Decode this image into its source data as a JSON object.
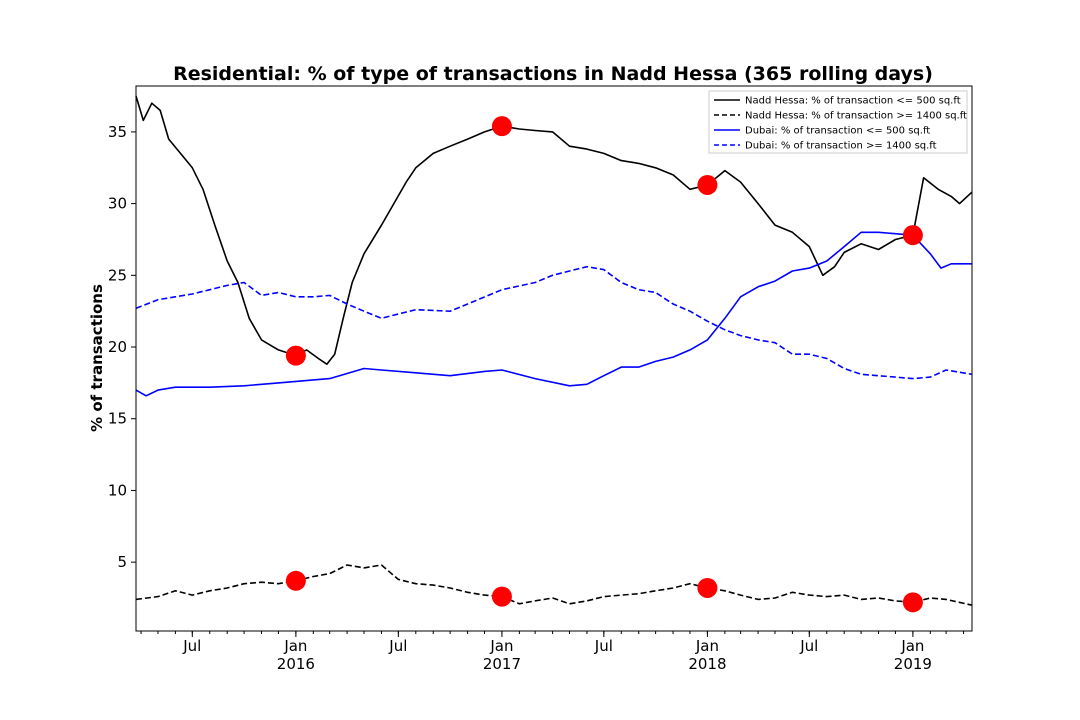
{
  "chart_data": {
    "type": "line",
    "title": "Residential: % of type of transactions in Nadd Hessa (365 rolling days)",
    "xlabel": "",
    "ylabel": "% of transactions",
    "xlim": [
      "2015-03-23",
      "2019-04-16"
    ],
    "ylim": [
      0.2,
      38.2
    ],
    "y_ticks": [
      5,
      10,
      15,
      20,
      25,
      30,
      35
    ],
    "x_ticks": [
      {
        "date": "2015-07-01",
        "label": "Jul",
        "year": ""
      },
      {
        "date": "2016-01-01",
        "label": "Jan",
        "year": "2016"
      },
      {
        "date": "2016-07-01",
        "label": "Jul",
        "year": ""
      },
      {
        "date": "2017-01-01",
        "label": "Jan",
        "year": "2017"
      },
      {
        "date": "2017-07-01",
        "label": "Jul",
        "year": ""
      },
      {
        "date": "2018-01-01",
        "label": "Jan",
        "year": "2018"
      },
      {
        "date": "2018-07-01",
        "label": "Jul",
        "year": ""
      },
      {
        "date": "2019-01-01",
        "label": "Jan",
        "year": "2019"
      }
    ],
    "legend_position": "top-right",
    "grid": false,
    "series": [
      {
        "name": "Nadd Hessa: % of transaction <= 500 sq.ft",
        "color": "#000000",
        "style": "solid",
        "points": [
          [
            "2015-03-23",
            37.5
          ],
          [
            "2015-04-05",
            35.8
          ],
          [
            "2015-04-20",
            37.0
          ],
          [
            "2015-05-05",
            36.5
          ],
          [
            "2015-05-20",
            34.5
          ],
          [
            "2015-06-10",
            33.5
          ],
          [
            "2015-07-01",
            32.5
          ],
          [
            "2015-07-20",
            31.0
          ],
          [
            "2015-08-10",
            28.5
          ],
          [
            "2015-09-01",
            26.0
          ],
          [
            "2015-09-20",
            24.5
          ],
          [
            "2015-10-10",
            22.0
          ],
          [
            "2015-11-01",
            20.5
          ],
          [
            "2015-12-01",
            19.8
          ],
          [
            "2016-01-01",
            19.4
          ],
          [
            "2016-01-20",
            19.8
          ],
          [
            "2016-02-10",
            19.2
          ],
          [
            "2016-02-25",
            18.8
          ],
          [
            "2016-03-10",
            19.5
          ],
          [
            "2016-03-25",
            22.0
          ],
          [
            "2016-04-10",
            24.5
          ],
          [
            "2016-05-01",
            26.5
          ],
          [
            "2016-06-01",
            28.5
          ],
          [
            "2016-07-15",
            31.5
          ],
          [
            "2016-08-01",
            32.5
          ],
          [
            "2016-09-01",
            33.5
          ],
          [
            "2016-10-01",
            34.0
          ],
          [
            "2016-11-01",
            34.5
          ],
          [
            "2016-12-01",
            35.0
          ],
          [
            "2017-01-01",
            35.4
          ],
          [
            "2017-02-01",
            35.2
          ],
          [
            "2017-03-01",
            35.1
          ],
          [
            "2017-04-01",
            35.0
          ],
          [
            "2017-05-01",
            34.0
          ],
          [
            "2017-06-01",
            33.8
          ],
          [
            "2017-07-01",
            33.5
          ],
          [
            "2017-08-01",
            33.0
          ],
          [
            "2017-09-01",
            32.8
          ],
          [
            "2017-10-01",
            32.5
          ],
          [
            "2017-11-01",
            32.0
          ],
          [
            "2017-12-01",
            31.0
          ],
          [
            "2018-01-01",
            31.3
          ],
          [
            "2018-02-01",
            32.3
          ],
          [
            "2018-03-01",
            31.5
          ],
          [
            "2018-04-01",
            30.0
          ],
          [
            "2018-05-01",
            28.5
          ],
          [
            "2018-06-01",
            28.0
          ],
          [
            "2018-07-01",
            27.0
          ],
          [
            "2018-07-25",
            25.0
          ],
          [
            "2018-08-15",
            25.6
          ],
          [
            "2018-09-01",
            26.6
          ],
          [
            "2018-10-01",
            27.2
          ],
          [
            "2018-11-01",
            26.8
          ],
          [
            "2018-12-01",
            27.5
          ],
          [
            "2019-01-01",
            27.8
          ],
          [
            "2019-01-20",
            31.8
          ],
          [
            "2019-02-15",
            31.0
          ],
          [
            "2019-03-10",
            30.5
          ],
          [
            "2019-03-25",
            30.0
          ],
          [
            "2019-04-16",
            30.8
          ]
        ]
      },
      {
        "name": "Nadd Hessa: % of transaction >= 1400 sq.ft",
        "color": "#000000",
        "style": "dashed",
        "points": [
          [
            "2015-03-23",
            2.4
          ],
          [
            "2015-05-01",
            2.6
          ],
          [
            "2015-06-01",
            3.0
          ],
          [
            "2015-07-01",
            2.7
          ],
          [
            "2015-08-01",
            3.0
          ],
          [
            "2015-09-01",
            3.2
          ],
          [
            "2015-10-01",
            3.5
          ],
          [
            "2015-11-01",
            3.6
          ],
          [
            "2015-12-01",
            3.5
          ],
          [
            "2016-01-01",
            3.7
          ],
          [
            "2016-02-01",
            4.0
          ],
          [
            "2016-03-01",
            4.2
          ],
          [
            "2016-04-01",
            4.8
          ],
          [
            "2016-05-01",
            4.6
          ],
          [
            "2016-06-01",
            4.8
          ],
          [
            "2016-07-01",
            3.8
          ],
          [
            "2016-08-01",
            3.5
          ],
          [
            "2016-09-01",
            3.4
          ],
          [
            "2016-10-01",
            3.2
          ],
          [
            "2016-11-01",
            2.9
          ],
          [
            "2016-12-01",
            2.7
          ],
          [
            "2017-01-01",
            2.6
          ],
          [
            "2017-02-01",
            2.1
          ],
          [
            "2017-03-01",
            2.3
          ],
          [
            "2017-04-01",
            2.5
          ],
          [
            "2017-05-01",
            2.1
          ],
          [
            "2017-06-01",
            2.3
          ],
          [
            "2017-07-01",
            2.6
          ],
          [
            "2017-08-01",
            2.7
          ],
          [
            "2017-09-01",
            2.8
          ],
          [
            "2017-10-01",
            3.0
          ],
          [
            "2017-11-01",
            3.2
          ],
          [
            "2017-12-01",
            3.5
          ],
          [
            "2018-01-01",
            3.2
          ],
          [
            "2018-02-01",
            3.0
          ],
          [
            "2018-03-01",
            2.7
          ],
          [
            "2018-04-01",
            2.4
          ],
          [
            "2018-05-01",
            2.5
          ],
          [
            "2018-06-01",
            2.9
          ],
          [
            "2018-07-01",
            2.7
          ],
          [
            "2018-08-01",
            2.6
          ],
          [
            "2018-09-01",
            2.7
          ],
          [
            "2018-10-01",
            2.4
          ],
          [
            "2018-11-01",
            2.5
          ],
          [
            "2018-12-01",
            2.3
          ],
          [
            "2019-01-01",
            2.2
          ],
          [
            "2019-02-01",
            2.5
          ],
          [
            "2019-03-01",
            2.4
          ],
          [
            "2019-04-16",
            2.0
          ]
        ]
      },
      {
        "name": "Dubai: % of transaction <= 500 sq.ft",
        "color": "#0000ff",
        "style": "solid",
        "points": [
          [
            "2015-03-23",
            17.0
          ],
          [
            "2015-04-10",
            16.6
          ],
          [
            "2015-05-01",
            17.0
          ],
          [
            "2015-06-01",
            17.2
          ],
          [
            "2015-08-01",
            17.2
          ],
          [
            "2015-10-01",
            17.3
          ],
          [
            "2015-12-01",
            17.5
          ],
          [
            "2016-01-01",
            17.6
          ],
          [
            "2016-03-01",
            17.8
          ],
          [
            "2016-05-01",
            18.5
          ],
          [
            "2016-06-01",
            18.4
          ],
          [
            "2016-08-01",
            18.2
          ],
          [
            "2016-10-01",
            18.0
          ],
          [
            "2016-12-01",
            18.3
          ],
          [
            "2017-01-01",
            18.4
          ],
          [
            "2017-03-01",
            17.8
          ],
          [
            "2017-05-01",
            17.3
          ],
          [
            "2017-06-01",
            17.4
          ],
          [
            "2017-07-01",
            18.0
          ],
          [
            "2017-08-01",
            18.6
          ],
          [
            "2017-09-01",
            18.6
          ],
          [
            "2017-10-01",
            19.0
          ],
          [
            "2017-11-01",
            19.3
          ],
          [
            "2017-12-01",
            19.8
          ],
          [
            "2018-01-01",
            20.5
          ],
          [
            "2018-02-01",
            22.0
          ],
          [
            "2018-03-01",
            23.5
          ],
          [
            "2018-04-01",
            24.2
          ],
          [
            "2018-05-01",
            24.6
          ],
          [
            "2018-06-01",
            25.3
          ],
          [
            "2018-07-01",
            25.5
          ],
          [
            "2018-08-01",
            26.0
          ],
          [
            "2018-09-01",
            27.0
          ],
          [
            "2018-10-01",
            28.0
          ],
          [
            "2018-11-01",
            28.0
          ],
          [
            "2018-12-01",
            27.9
          ],
          [
            "2019-01-01",
            27.8
          ],
          [
            "2019-02-01",
            26.5
          ],
          [
            "2019-02-20",
            25.5
          ],
          [
            "2019-03-10",
            25.8
          ],
          [
            "2019-04-16",
            25.8
          ]
        ]
      },
      {
        "name": "Dubai: % of transaction >= 1400 sq.ft",
        "color": "#0000ff",
        "style": "dashed",
        "points": [
          [
            "2015-03-23",
            22.7
          ],
          [
            "2015-05-01",
            23.3
          ],
          [
            "2015-07-01",
            23.7
          ],
          [
            "2015-09-01",
            24.3
          ],
          [
            "2015-10-01",
            24.5
          ],
          [
            "2015-11-01",
            23.6
          ],
          [
            "2015-12-01",
            23.8
          ],
          [
            "2016-01-01",
            23.5
          ],
          [
            "2016-02-01",
            23.5
          ],
          [
            "2016-03-01",
            23.6
          ],
          [
            "2016-04-01",
            23.0
          ],
          [
            "2016-05-01",
            22.5
          ],
          [
            "2016-06-01",
            22.0
          ],
          [
            "2016-07-01",
            22.3
          ],
          [
            "2016-08-01",
            22.6
          ],
          [
            "2016-10-01",
            22.5
          ],
          [
            "2016-11-01",
            23.0
          ],
          [
            "2017-01-01",
            24.0
          ],
          [
            "2017-03-01",
            24.5
          ],
          [
            "2017-04-01",
            25.0
          ],
          [
            "2017-05-01",
            25.3
          ],
          [
            "2017-06-01",
            25.6
          ],
          [
            "2017-07-01",
            25.4
          ],
          [
            "2017-08-01",
            24.5
          ],
          [
            "2017-09-01",
            24.0
          ],
          [
            "2017-10-01",
            23.8
          ],
          [
            "2017-11-01",
            23.0
          ],
          [
            "2017-12-01",
            22.5
          ],
          [
            "2018-01-01",
            21.8
          ],
          [
            "2018-02-01",
            21.2
          ],
          [
            "2018-03-01",
            20.8
          ],
          [
            "2018-04-01",
            20.5
          ],
          [
            "2018-05-01",
            20.3
          ],
          [
            "2018-06-01",
            19.5
          ],
          [
            "2018-07-01",
            19.5
          ],
          [
            "2018-08-01",
            19.2
          ],
          [
            "2018-09-01",
            18.5
          ],
          [
            "2018-10-01",
            18.1
          ],
          [
            "2018-11-01",
            18.0
          ],
          [
            "2018-12-01",
            17.9
          ],
          [
            "2019-01-01",
            17.8
          ],
          [
            "2019-02-01",
            17.9
          ],
          [
            "2019-03-01",
            18.4
          ],
          [
            "2019-04-16",
            18.1
          ]
        ]
      }
    ],
    "markers": {
      "color": "#ff0000",
      "points": [
        [
          "2016-01-01",
          19.4
        ],
        [
          "2017-01-01",
          35.4
        ],
        [
          "2018-01-01",
          31.3
        ],
        [
          "2019-01-01",
          27.8
        ],
        [
          "2016-01-01",
          3.7
        ],
        [
          "2017-01-01",
          2.6
        ],
        [
          "2018-01-01",
          3.2
        ],
        [
          "2019-01-01",
          2.2
        ]
      ]
    }
  }
}
